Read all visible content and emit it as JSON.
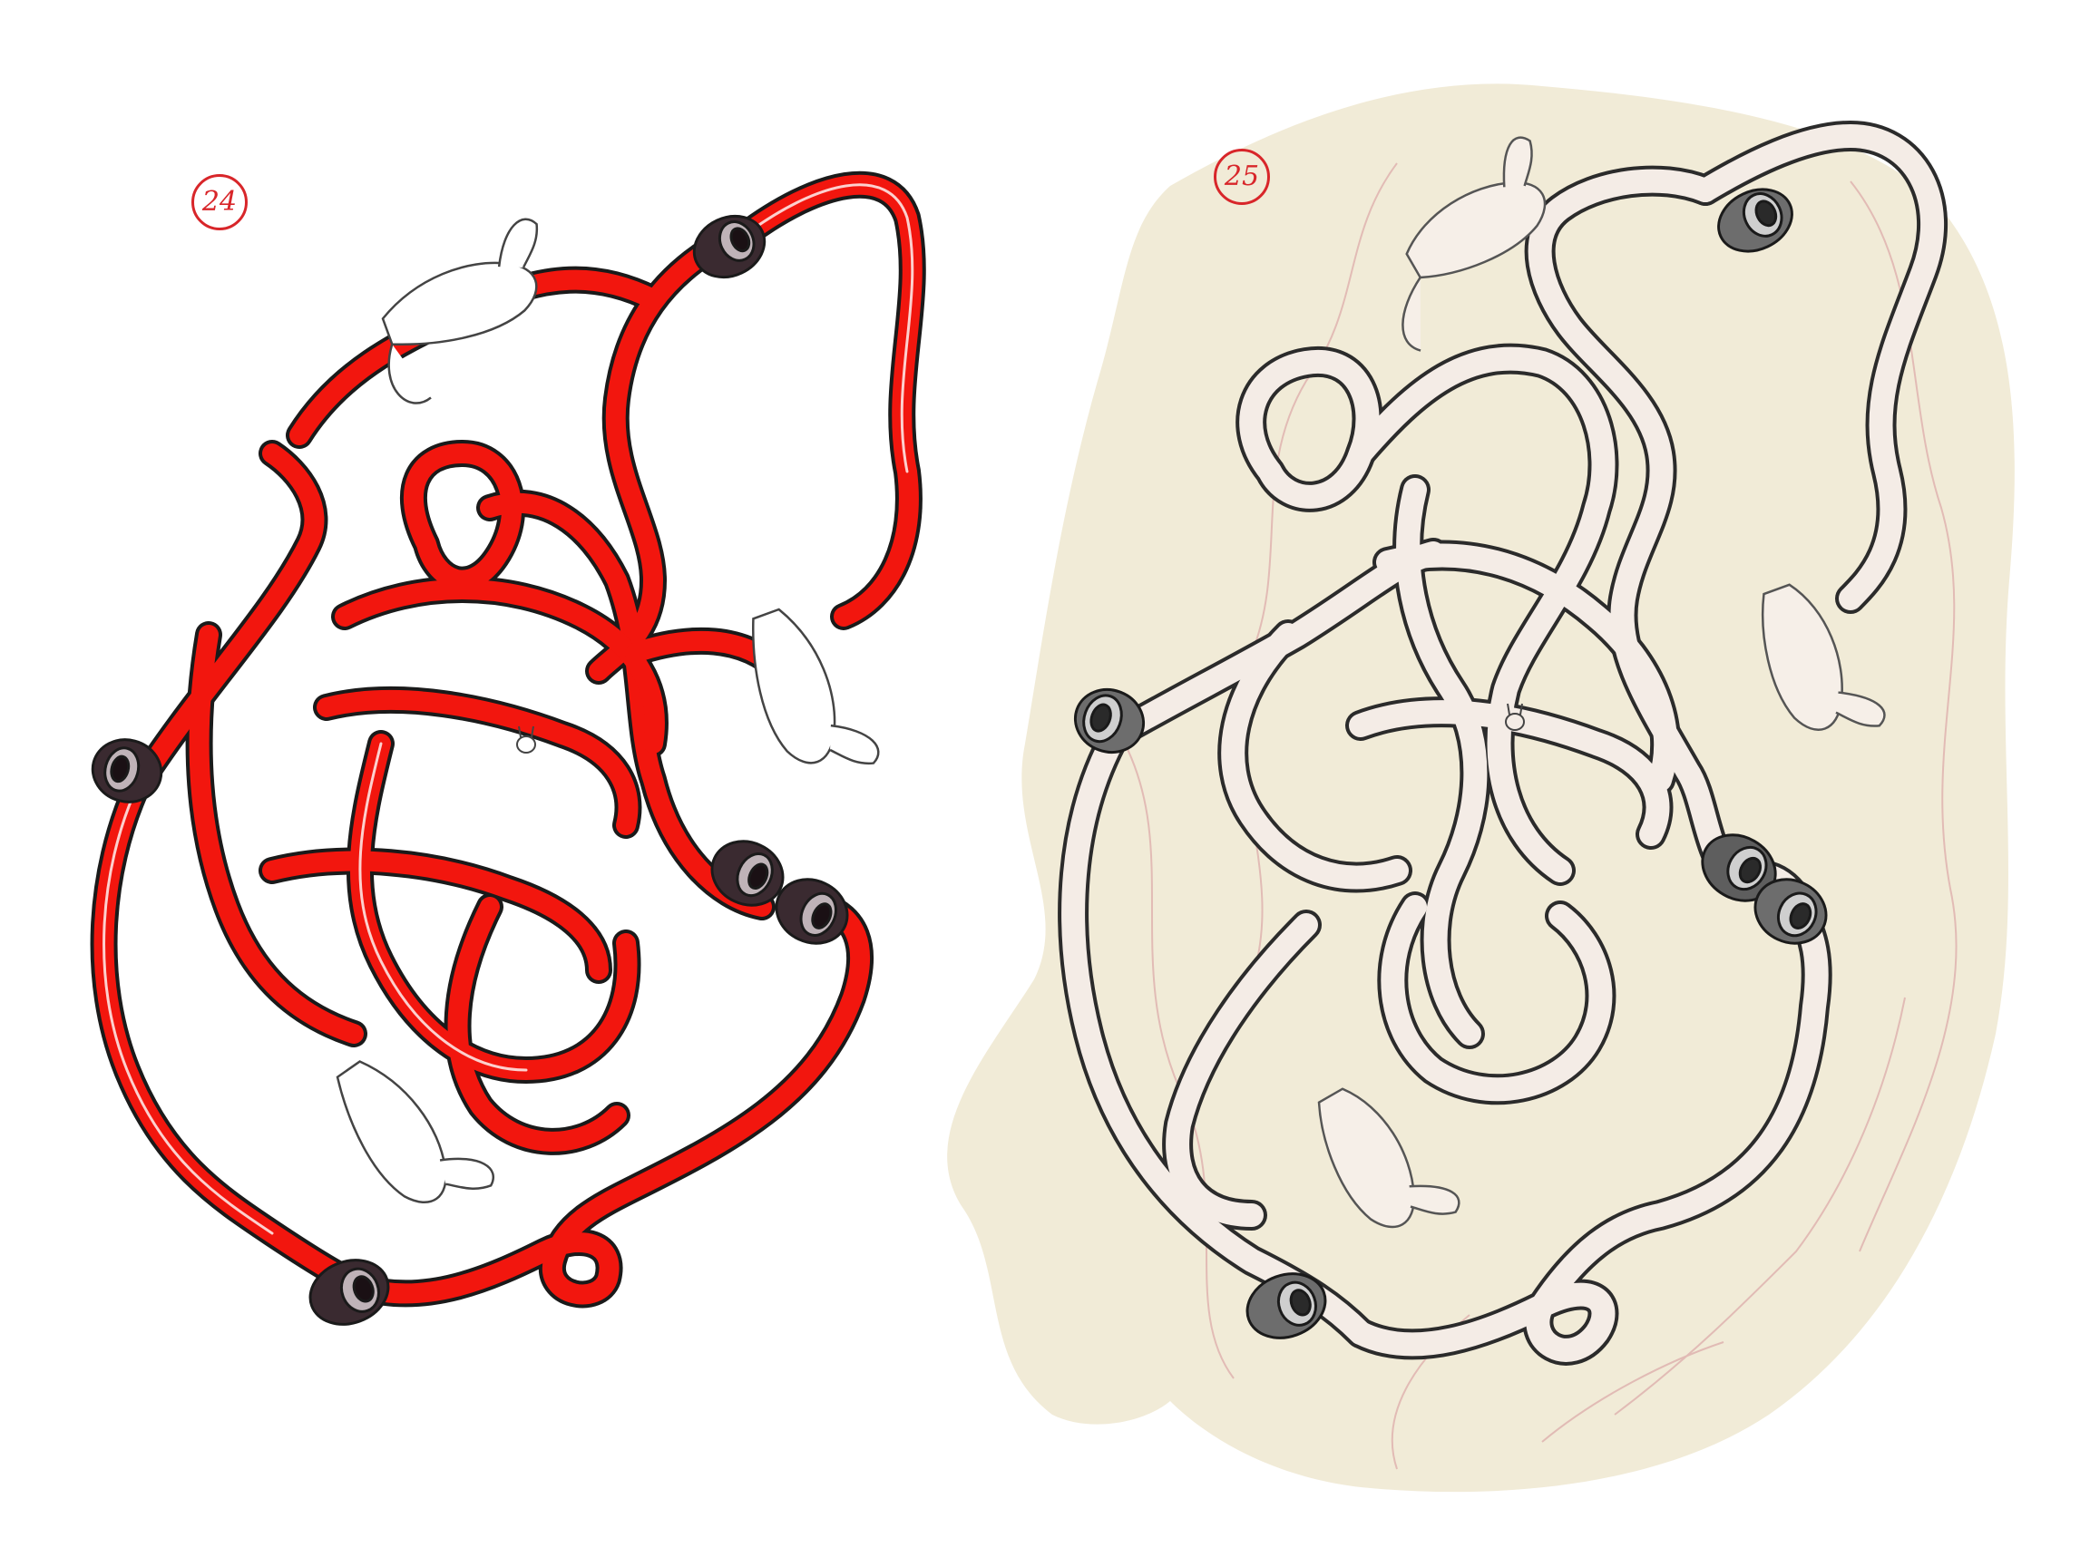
{
  "pages": [
    {
      "number": "24",
      "style": "red ink on white",
      "cord_color": "#f2160e"
    },
    {
      "number": "25",
      "style": "pencil sketch on cream paper",
      "cord_color": "#f4ece6"
    }
  ],
  "colors": {
    "background": "#ffffff",
    "paper": "#f1ebd7",
    "ink": "#1a1a1a",
    "page_number": "#d8262a",
    "sketch_red": "#d9a3a3"
  }
}
